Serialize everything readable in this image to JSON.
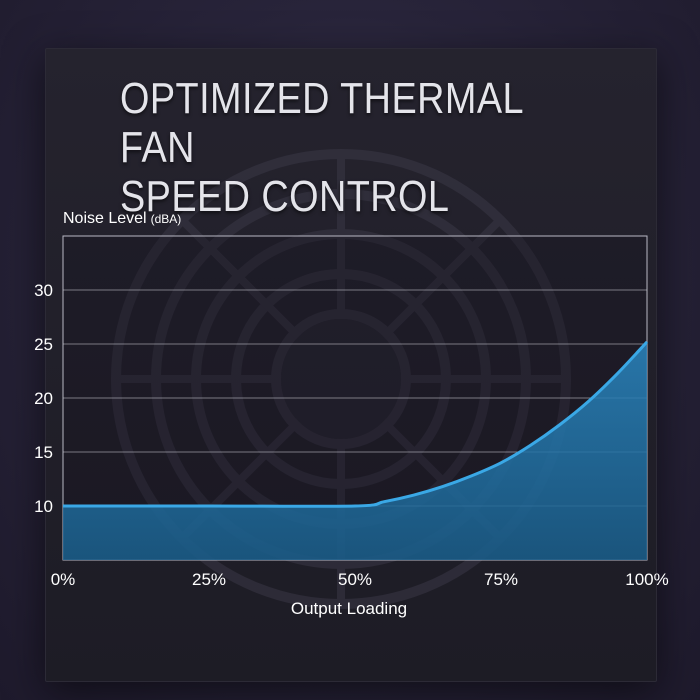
{
  "header": {
    "title_line1": "OPTIMIZED THERMAL FAN",
    "title_line2": "SPEED CONTROL"
  },
  "colors": {
    "curve": "#3aa8e6",
    "fill": "#1f6e9c",
    "grid": "#c8c8d0"
  },
  "chart_data": {
    "type": "area",
    "title": "OPTIMIZED THERMAL FAN SPEED CONTROL",
    "xlabel": "Output Loading",
    "ylabel_main": "Noise Level",
    "ylabel_unit": "(dBA)",
    "xlim": [
      0,
      100
    ],
    "ylim": [
      5,
      35
    ],
    "x_ticks": [
      0,
      25,
      50,
      75,
      100
    ],
    "x_tick_labels": [
      "0%",
      "25%",
      "50%",
      "75%",
      "100%"
    ],
    "y_ticks": [
      10,
      15,
      20,
      25,
      30
    ],
    "y_tick_labels": [
      "10",
      "15",
      "20",
      "25",
      "30"
    ],
    "grid": true,
    "series": [
      {
        "x": [
          0,
          25,
          50,
          55,
          60,
          65,
          70,
          75,
          80,
          85,
          90,
          95,
          100
        ],
        "y": [
          10,
          10,
          10,
          10.4,
          11.0,
          11.8,
          12.8,
          14.0,
          15.6,
          17.5,
          19.7,
          22.3,
          25.2
        ]
      }
    ]
  }
}
